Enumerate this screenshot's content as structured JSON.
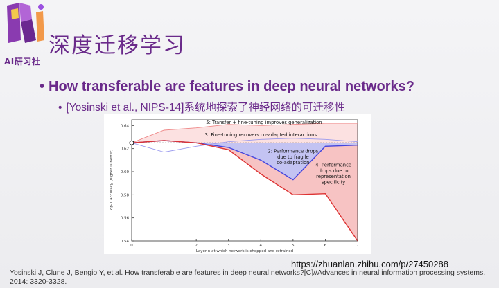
{
  "logo": {
    "text": "AI研习社",
    "icon": "ri-logo-icon"
  },
  "slide": {
    "title": "深度迁移学习",
    "bullet_main": "How transferable are features in deep neural networks?",
    "bullet_sub": "[Yosinski et al., NIPS-14]系统地探索了神经网络的可迁移性",
    "bullet_glyph": "•"
  },
  "chart_data": {
    "type": "line",
    "xlabel": "Layer n at which network is chopped and retrained",
    "ylabel": "Top-1 accuracy (higher is better)",
    "x": [
      0,
      1,
      2,
      3,
      4,
      5,
      6,
      7
    ],
    "xticks": [
      "0",
      "1",
      "2",
      "3",
      "4",
      "5",
      "6",
      "7"
    ],
    "yticks": [
      "0.54",
      "0.56",
      "0.58",
      "0.60",
      "0.62",
      "0.64"
    ],
    "ylim": [
      0.54,
      0.645
    ],
    "baseline": 0.625,
    "series": [
      {
        "values": [
          0.625,
          0.627,
          0.625,
          0.621,
          0.61,
          0.593,
          0.622,
          0.623
        ],
        "color": "#4444dd"
      },
      {
        "values": [
          0.625,
          0.627,
          0.625,
          0.619,
          0.598,
          0.58,
          0.581,
          0.54
        ],
        "color": "#dd3333"
      },
      {
        "values": [
          0.625,
          0.617,
          0.622,
          0.626,
          0.628,
          0.629,
          0.628,
          0.626
        ],
        "color": "#9999ee"
      },
      {
        "values": [
          0.625,
          0.636,
          0.638,
          0.641,
          0.64,
          0.641,
          0.642,
          0.642
        ],
        "color": "#ee8888"
      }
    ],
    "bands": [
      {
        "upper": [
          0.625,
          0.627,
          0.625,
          0.625,
          0.625,
          0.625,
          0.625,
          0.625
        ],
        "lower": [
          0.625,
          0.627,
          0.625,
          0.621,
          0.61,
          0.593,
          0.622,
          0.623
        ],
        "color": "#b8b8f0"
      },
      {
        "upper": [
          0.625,
          0.627,
          0.625,
          0.621,
          0.61,
          0.593,
          0.622,
          0.623
        ],
        "lower": [
          0.625,
          0.627,
          0.625,
          0.619,
          0.598,
          0.58,
          0.581,
          0.54
        ],
        "color": "#f6b8b8"
      },
      {
        "upper": [
          0.625,
          0.636,
          0.638,
          0.641,
          0.64,
          0.641,
          0.642,
          0.642
        ],
        "lower": [
          0.625,
          0.627,
          0.625,
          0.625,
          0.625,
          0.625,
          0.625,
          0.625
        ],
        "color": "#fbdcdc"
      }
    ],
    "annotations": [
      {
        "text": "5: Transfer + fine-tuning improves generalization",
        "x": 4.1,
        "y": 0.6415,
        "anchor": "middle"
      },
      {
        "text": "3: Fine-tuning recovers co-adapted interactions",
        "x": 4.0,
        "y": 0.6305,
        "anchor": "middle"
      },
      {
        "text": "2: Performance drops",
        "x": 5.0,
        "y": 0.6165,
        "anchor": "middle"
      },
      {
        "text": "due to fragile",
        "x": 5.0,
        "y": 0.6115,
        "anchor": "middle"
      },
      {
        "text": "co-adaptation",
        "x": 5.0,
        "y": 0.6065,
        "anchor": "middle"
      },
      {
        "text": "4: Performance",
        "x": 6.25,
        "y": 0.6045,
        "anchor": "middle"
      },
      {
        "text": "drops due to",
        "x": 6.25,
        "y": 0.5995,
        "anchor": "middle"
      },
      {
        "text": "representation",
        "x": 6.25,
        "y": 0.5945,
        "anchor": "middle"
      },
      {
        "text": "specificity",
        "x": 6.25,
        "y": 0.5895,
        "anchor": "middle"
      }
    ]
  },
  "footer": {
    "url": "https://zhuanlan.zhihu.com/p/27450288",
    "reference": "Yosinski J, Clune J, Bengio Y, et al. How transferable are features in deep neural networks?[C]//Advances in neural information processing systems. 2014: 3320-3328."
  }
}
